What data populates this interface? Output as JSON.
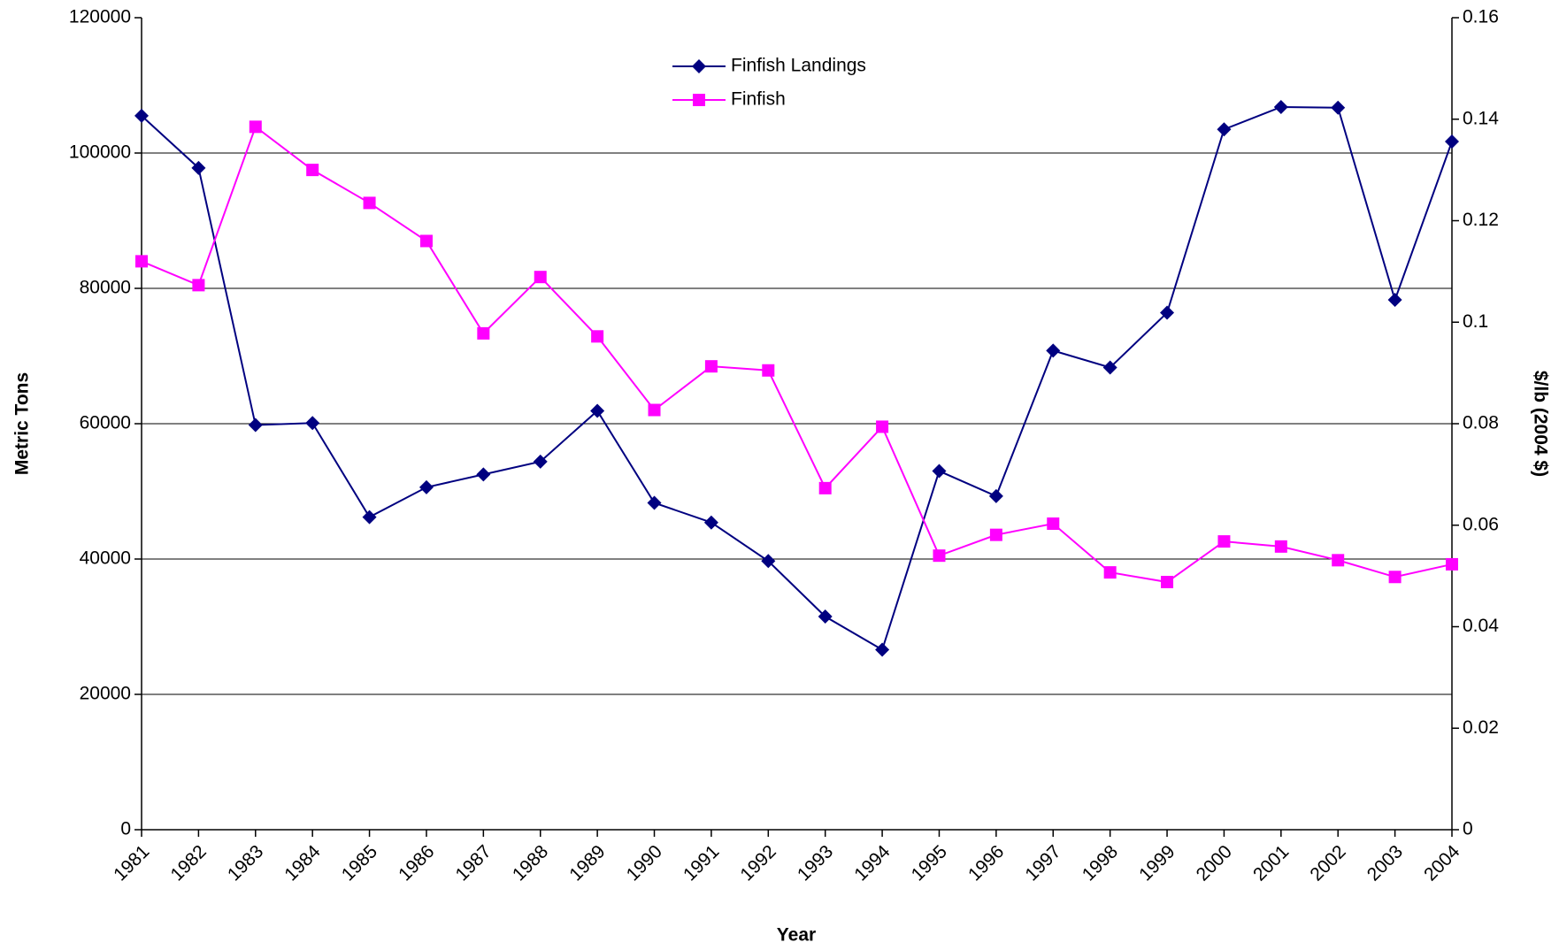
{
  "chart_data": {
    "type": "line",
    "x_label": "Year",
    "y_label": "Metric Tons",
    "y2_label": "$/lb (2004 $)",
    "categories": [
      "1981",
      "1982",
      "1983",
      "1984",
      "1985",
      "1986",
      "1987",
      "1988",
      "1989",
      "1990",
      "1991",
      "1992",
      "1993",
      "1994",
      "1995",
      "1996",
      "1997",
      "1998",
      "1999",
      "2000",
      "2001",
      "2002",
      "2003",
      "2004"
    ],
    "series": [
      {
        "name": "Finfish Landings",
        "color": "#000080",
        "marker": "diamond",
        "values": [
          105500,
          97800,
          59800,
          60100,
          46200,
          50600,
          52500,
          54400,
          61900,
          48300,
          45400,
          39700,
          31500,
          26600,
          53000,
          49300,
          70800,
          68300,
          76400,
          103500,
          106800,
          106700,
          78300,
          101700
        ]
      },
      {
        "name": "Finfish",
        "color": "#ff00ff",
        "marker": "square",
        "axis": "y2",
        "values": [
          0.112,
          0.1073,
          0.1385,
          0.13,
          0.1235,
          0.116,
          0.0978,
          0.1089,
          0.0972,
          0.0827,
          0.0913,
          0.0905,
          0.0673,
          0.0794,
          0.054,
          0.0581,
          0.0603,
          0.0507,
          0.0488,
          0.0568,
          0.0558,
          0.0531,
          0.0498,
          0.0523
        ]
      }
    ],
    "ylim": [
      0,
      120000
    ],
    "yticks": [
      0,
      20000,
      40000,
      60000,
      80000,
      100000,
      120000
    ],
    "y2lim": [
      0,
      0.16
    ],
    "y2ticks": [
      0,
      0.02,
      0.04,
      0.06,
      0.08,
      0.1,
      0.12,
      0.14,
      0.16
    ],
    "grid": true,
    "legend": "top-center"
  }
}
